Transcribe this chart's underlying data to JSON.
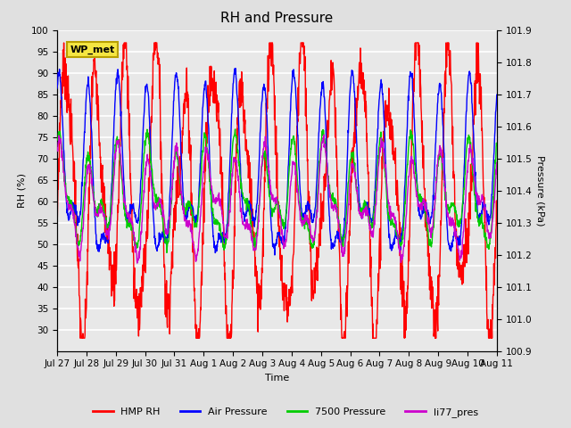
{
  "title": "RH and Pressure",
  "xlabel": "Time",
  "ylabel_left": "RH (%)",
  "ylabel_right": "Pressure (kPa)",
  "ylim_left": [
    25,
    100
  ],
  "ylim_right": [
    100.9,
    101.9
  ],
  "background_color": "#e0e0e0",
  "plot_bg_color": "#e8e8e8",
  "grid_color": "white",
  "title_fontsize": 11,
  "label_fontsize": 8,
  "tick_fontsize": 7.5,
  "legend_label": "WP_met",
  "colors": {
    "HMP RH": "#ff0000",
    "Air Pressure": "#0000ff",
    "7500 Pressure": "#00cc00",
    "li77_pres": "#cc00cc"
  },
  "n_points": 1500,
  "x_start_day": 0.0,
  "x_end_day": 15.0,
  "xtick_positions": [
    0,
    1,
    2,
    3,
    4,
    5,
    6,
    7,
    8,
    9,
    10,
    11,
    12,
    13,
    14,
    15
  ],
  "xtick_labels": [
    "Jul 27",
    "Jul 28",
    "Jul 29",
    "Jul 30",
    "Jul 31",
    "Aug 1",
    "Aug 2",
    "Aug 3",
    "Aug 4",
    "Aug 5",
    "Aug 6",
    "Aug 7",
    "Aug 8",
    "Aug 9",
    "Aug 10",
    "Aug 11"
  ],
  "yticks_left": [
    30,
    35,
    40,
    45,
    50,
    55,
    60,
    65,
    70,
    75,
    80,
    85,
    90,
    95,
    100
  ],
  "yticks_right": [
    100.9,
    101.0,
    101.1,
    101.2,
    101.3,
    101.4,
    101.5,
    101.6,
    101.7,
    101.8,
    101.9
  ]
}
